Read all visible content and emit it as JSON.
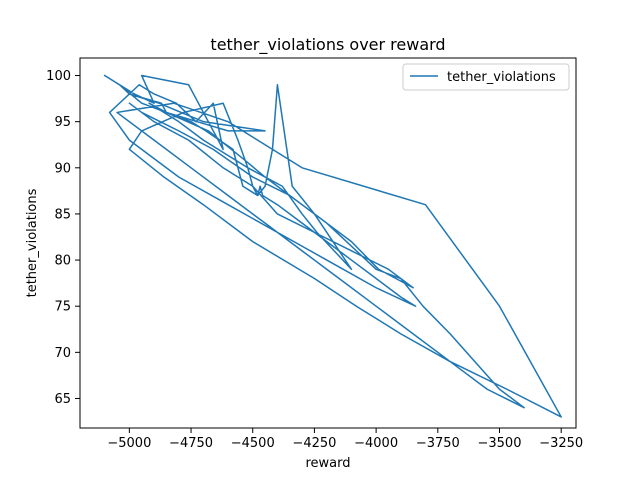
{
  "chart_data": {
    "type": "line",
    "title": "tether_violations over reward",
    "xlabel": "reward",
    "ylabel": "tether_violations",
    "xlim": [
      -5200,
      -3190
    ],
    "ylim": [
      61.8,
      101.9
    ],
    "xticks": [
      -5000,
      -4750,
      -4500,
      -4250,
      -4000,
      -3750,
      -3500,
      -3250
    ],
    "xtick_labels": [
      "−5000",
      "−4750",
      "−4500",
      "−4250",
      "−4000",
      "−3750",
      "−3500",
      "−3250"
    ],
    "yticks": [
      65,
      70,
      75,
      80,
      85,
      90,
      95,
      100
    ],
    "ytick_labels": [
      "65",
      "70",
      "75",
      "80",
      "85",
      "90",
      "95",
      "100"
    ],
    "grid": false,
    "legend_position": "upper right",
    "series": [
      {
        "name": "tether_violations",
        "color": "#1f77b4",
        "x": [
          -5100,
          -4980,
          -4900,
          -4950,
          -4760,
          -4700,
          -4620,
          -4660,
          -4730,
          -4810,
          -4900,
          -4960,
          -5000,
          -4870,
          -4850,
          -4600,
          -4450,
          -4700,
          -4880,
          -5000,
          -5040,
          -4950,
          -4750,
          -4690,
          -4580,
          -4540,
          -4480,
          -4450,
          -4420,
          -4400,
          -4340,
          -4250,
          -4150,
          -4100,
          -4170,
          -4240,
          -4300,
          -4380,
          -4520,
          -4700,
          -4800,
          -4920,
          -4850,
          -4680,
          -4540,
          -4450,
          -4350,
          -4250,
          -4100,
          -3990,
          -3920,
          -3850,
          -3950,
          -4100,
          -4250,
          -4400,
          -4500,
          -4620,
          -4760,
          -4900,
          -5000,
          -4950,
          -4800,
          -4660,
          -4500,
          -4350,
          -4200,
          -4080,
          -4000,
          -3900,
          -3810,
          -3700,
          -3600,
          -3500,
          -3400,
          -3550,
          -3700,
          -3850,
          -4000,
          -4150,
          -4300,
          -4450,
          -4600,
          -4750,
          -4900,
          -5050,
          -4820,
          -4600,
          -4420,
          -4300,
          -3800,
          -3500,
          -3250,
          -3470,
          -3700,
          -3900,
          -4080,
          -4250,
          -4500,
          -4700,
          -4860,
          -5000,
          -4950,
          -4780,
          -4620,
          -4560,
          -4520,
          -4500,
          -4480,
          -4470,
          -4460,
          -4400,
          -4300,
          -4200,
          -4100,
          -4000,
          -3900,
          -3840,
          -4000,
          -4200,
          -4400,
          -4600,
          -4800,
          -5000,
          -5080,
          -5000
        ],
        "y": [
          100,
          98,
          97,
          100,
          99,
          96,
          92,
          97,
          95,
          97,
          98,
          99,
          98,
          97,
          96,
          94,
          94,
          95,
          97,
          98,
          99,
          97,
          95,
          94,
          92,
          88,
          87,
          88,
          92,
          99,
          88,
          85,
          81,
          79,
          81,
          83,
          85,
          88,
          90,
          93,
          95,
          97,
          96,
          94,
          91,
          89,
          87,
          85,
          82,
          79,
          78,
          77,
          79,
          81,
          83,
          85,
          88,
          90,
          93,
          95,
          97,
          96,
          94,
          92,
          89,
          87,
          84,
          81,
          79,
          78,
          75,
          72,
          69,
          66,
          64,
          66,
          69,
          72,
          75,
          78,
          81,
          84,
          87,
          90,
          93,
          96,
          97,
          95,
          92,
          90,
          86,
          75,
          63,
          66,
          69,
          72,
          75,
          78,
          82,
          86,
          89,
          92,
          94,
          96,
          97,
          93,
          90,
          88,
          87,
          88,
          87,
          86,
          84,
          82,
          80,
          78,
          76,
          75,
          77,
          80,
          83,
          86,
          89,
          93,
          96,
          98
        ]
      }
    ]
  }
}
